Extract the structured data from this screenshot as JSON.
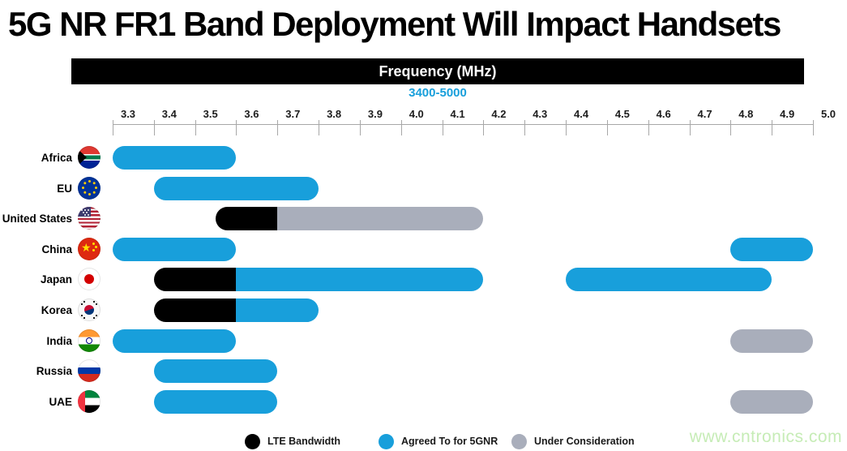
{
  "title": "5G NR FR1 Band Deployment Will Impact Handsets",
  "header": {
    "label": "Frequency (MHz)",
    "range": "3400-5000"
  },
  "watermark": "www.cntronics.com",
  "colors": {
    "lte": "#000000",
    "agreed": "#189FDB",
    "consideration": "#A9AEBB",
    "header_bg": "#000000",
    "header_text": "#FFFFFF",
    "range_text": "#189FDB",
    "axis": "#A8A8A8",
    "watermark": "#C6ECB6"
  },
  "legend": [
    {
      "key": "lte",
      "label": "LTE Bandwidth",
      "color": "#000000"
    },
    {
      "key": "agreed",
      "label": "Agreed To for 5GNR",
      "color": "#189FDB"
    },
    {
      "key": "consideration",
      "label": "Under Consideration",
      "color": "#A9AEBB"
    }
  ],
  "chart_data": {
    "type": "bar",
    "subtype": "horizontal-range-bars",
    "title": "5G NR FR1 Band Deployment Will Impact Handsets",
    "xlabel": "Frequency (MHz)",
    "x_axis_range_label": "3400-5000",
    "xlim": [
      3.3,
      5.0
    ],
    "x_tick_labels": [
      "3.3",
      "3.4",
      "3.5",
      "3.6",
      "3.7",
      "3.8",
      "3.9",
      "4.0",
      "4.1",
      "4.2",
      "4.3",
      "4.4",
      "4.5",
      "4.6",
      "4.7",
      "4.8",
      "4.9",
      "5.0"
    ],
    "grid": false,
    "legend_position": "bottom",
    "categories": [
      "Africa",
      "EU",
      "United States",
      "China",
      "Japan",
      "Korea",
      "India",
      "Russia",
      "UAE"
    ],
    "rows": [
      {
        "label": "Africa",
        "flag": "south-africa",
        "segments": [
          {
            "start": 3.3,
            "end": 3.6,
            "type": "agreed"
          }
        ]
      },
      {
        "label": "EU",
        "flag": "eu",
        "segments": [
          {
            "start": 3.4,
            "end": 3.8,
            "type": "agreed"
          }
        ]
      },
      {
        "label": "United States",
        "flag": "us",
        "segments": [
          {
            "start": 3.55,
            "end": 3.7,
            "type": "lte"
          },
          {
            "start": 3.7,
            "end": 4.2,
            "type": "consideration"
          }
        ]
      },
      {
        "label": "China",
        "flag": "china",
        "segments": [
          {
            "start": 3.3,
            "end": 3.6,
            "type": "agreed"
          },
          {
            "start": 4.8,
            "end": 5.0,
            "type": "agreed"
          }
        ]
      },
      {
        "label": "Japan",
        "flag": "japan",
        "segments": [
          {
            "start": 3.4,
            "end": 3.6,
            "type": "lte"
          },
          {
            "start": 3.6,
            "end": 4.2,
            "type": "agreed"
          },
          {
            "start": 4.4,
            "end": 4.9,
            "type": "agreed"
          }
        ]
      },
      {
        "label": "Korea",
        "flag": "korea",
        "segments": [
          {
            "start": 3.4,
            "end": 3.6,
            "type": "lte"
          },
          {
            "start": 3.6,
            "end": 3.8,
            "type": "agreed"
          }
        ]
      },
      {
        "label": "India",
        "flag": "india",
        "segments": [
          {
            "start": 3.3,
            "end": 3.6,
            "type": "agreed"
          },
          {
            "start": 4.8,
            "end": 5.0,
            "type": "consideration"
          }
        ]
      },
      {
        "label": "Russia",
        "flag": "russia",
        "segments": [
          {
            "start": 3.4,
            "end": 3.7,
            "type": "agreed"
          }
        ]
      },
      {
        "label": "UAE",
        "flag": "uae",
        "segments": [
          {
            "start": 3.4,
            "end": 3.7,
            "type": "agreed"
          },
          {
            "start": 4.8,
            "end": 5.0,
            "type": "consideration"
          }
        ]
      }
    ]
  }
}
